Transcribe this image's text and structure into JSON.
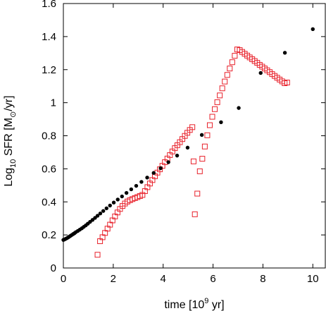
{
  "chart_data": {
    "type": "scatter",
    "title": "",
    "xlabel": {
      "base": "time [10",
      "sup": "9",
      "rest": " yr]"
    },
    "ylabel": {
      "pre": "Log",
      "sub1": "10",
      "mid": " SFR [M",
      "sub2": "⊙",
      "rest": "/yr]"
    },
    "xlim": [
      0,
      10.5
    ],
    "ylim": [
      0,
      1.6
    ],
    "xticks": [
      0,
      2,
      4,
      6,
      8,
      10
    ],
    "yticks": [
      0,
      0.2,
      0.4,
      0.6,
      0.8,
      1,
      1.2,
      1.4,
      1.6
    ],
    "xtick_labels": [
      "0",
      "2",
      "4",
      "6",
      "8",
      "10"
    ],
    "ytick_labels": [
      "0",
      "0.2",
      "0.4",
      "0.6",
      "0.8",
      "1",
      "1.2",
      "1.4",
      "1.6"
    ],
    "grid": false,
    "legend": "none",
    "colors": {
      "series_black": "#000000",
      "series_red": "#e8202a"
    },
    "series": [
      {
        "marker": "filled-circle",
        "color": "#000000",
        "points": [
          [
            0.0,
            0.17
          ],
          [
            0.05,
            0.173
          ],
          [
            0.1,
            0.177
          ],
          [
            0.15,
            0.181
          ],
          [
            0.2,
            0.186
          ],
          [
            0.25,
            0.191
          ],
          [
            0.3,
            0.196
          ],
          [
            0.35,
            0.201
          ],
          [
            0.4,
            0.206
          ],
          [
            0.45,
            0.211
          ],
          [
            0.5,
            0.217
          ],
          [
            0.58,
            0.224
          ],
          [
            0.66,
            0.232
          ],
          [
            0.74,
            0.24
          ],
          [
            0.82,
            0.249
          ],
          [
            0.9,
            0.258
          ],
          [
            0.98,
            0.268
          ],
          [
            1.07,
            0.279
          ],
          [
            1.17,
            0.291
          ],
          [
            1.27,
            0.303
          ],
          [
            1.37,
            0.316
          ],
          [
            1.48,
            0.33
          ],
          [
            1.6,
            0.345
          ],
          [
            1.73,
            0.361
          ],
          [
            1.87,
            0.378
          ],
          [
            2.02,
            0.396
          ],
          [
            2.18,
            0.414
          ],
          [
            2.35,
            0.433
          ],
          [
            2.53,
            0.454
          ],
          [
            2.72,
            0.476
          ],
          [
            2.92,
            0.497
          ],
          [
            3.13,
            0.521
          ],
          [
            3.36,
            0.547
          ],
          [
            3.62,
            0.575
          ],
          [
            3.9,
            0.604
          ],
          [
            4.21,
            0.64
          ],
          [
            4.56,
            0.68
          ],
          [
            4.98,
            0.728
          ],
          [
            5.55,
            0.805
          ],
          [
            6.32,
            0.882
          ],
          [
            7.03,
            0.968
          ],
          [
            7.91,
            1.18
          ],
          [
            8.88,
            1.302
          ],
          [
            10.0,
            1.445
          ]
        ]
      },
      {
        "marker": "open-square",
        "color": "#e8202a",
        "points": [
          [
            1.37,
            0.08
          ],
          [
            1.47,
            0.162
          ],
          [
            1.57,
            0.186
          ],
          [
            1.67,
            0.212
          ],
          [
            1.77,
            0.238
          ],
          [
            1.87,
            0.262
          ],
          [
            1.97,
            0.288
          ],
          [
            2.07,
            0.312
          ],
          [
            2.17,
            0.336
          ],
          [
            2.27,
            0.357
          ],
          [
            2.37,
            0.375
          ],
          [
            2.47,
            0.39
          ],
          [
            2.57,
            0.402
          ],
          [
            2.67,
            0.41
          ],
          [
            2.77,
            0.417
          ],
          [
            2.87,
            0.423
          ],
          [
            2.97,
            0.429
          ],
          [
            3.07,
            0.435
          ],
          [
            3.17,
            0.442
          ],
          [
            3.27,
            0.465
          ],
          [
            3.37,
            0.489
          ],
          [
            3.47,
            0.511
          ],
          [
            3.57,
            0.532
          ],
          [
            3.67,
            0.555
          ],
          [
            3.77,
            0.577
          ],
          [
            3.87,
            0.597
          ],
          [
            3.97,
            0.618
          ],
          [
            4.07,
            0.64
          ],
          [
            4.17,
            0.662
          ],
          [
            4.27,
            0.683
          ],
          [
            4.37,
            0.705
          ],
          [
            4.47,
            0.725
          ],
          [
            4.57,
            0.743
          ],
          [
            4.67,
            0.761
          ],
          [
            4.77,
            0.78
          ],
          [
            4.87,
            0.799
          ],
          [
            4.97,
            0.818
          ],
          [
            5.07,
            0.835
          ],
          [
            5.17,
            0.852
          ],
          [
            5.22,
            0.645
          ],
          [
            5.27,
            0.325
          ],
          [
            5.37,
            0.45
          ],
          [
            5.47,
            0.585
          ],
          [
            5.57,
            0.661
          ],
          [
            5.67,
            0.735
          ],
          [
            5.77,
            0.803
          ],
          [
            5.87,
            0.864
          ],
          [
            5.97,
            0.915
          ],
          [
            6.07,
            0.961
          ],
          [
            6.17,
            1.003
          ],
          [
            6.27,
            1.044
          ],
          [
            6.37,
            1.087
          ],
          [
            6.47,
            1.128
          ],
          [
            6.57,
            1.168
          ],
          [
            6.67,
            1.207
          ],
          [
            6.77,
            1.245
          ],
          [
            6.87,
            1.284
          ],
          [
            6.97,
            1.322
          ],
          [
            7.07,
            1.318
          ],
          [
            7.17,
            1.307
          ],
          [
            7.27,
            1.296
          ],
          [
            7.37,
            1.285
          ],
          [
            7.47,
            1.274
          ],
          [
            7.57,
            1.263
          ],
          [
            7.67,
            1.252
          ],
          [
            7.77,
            1.241
          ],
          [
            7.87,
            1.229
          ],
          [
            7.97,
            1.218
          ],
          [
            8.07,
            1.207
          ],
          [
            8.17,
            1.196
          ],
          [
            8.27,
            1.185
          ],
          [
            8.37,
            1.173
          ],
          [
            8.47,
            1.162
          ],
          [
            8.57,
            1.151
          ],
          [
            8.67,
            1.14
          ],
          [
            8.77,
            1.129
          ],
          [
            8.87,
            1.118
          ],
          [
            8.97,
            1.122
          ]
        ]
      }
    ]
  }
}
